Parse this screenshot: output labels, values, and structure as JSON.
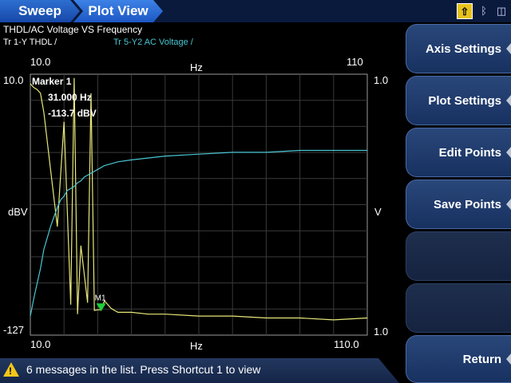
{
  "breadcrumb": {
    "sweep": "Sweep",
    "plot_view": "Plot View"
  },
  "status": {
    "up_icon": "up-arrow-icon",
    "bt_icon": "bluetooth-icon",
    "usb_icon": "usb-icon"
  },
  "plot": {
    "title": "THDL/AC Voltage VS Frequency",
    "trace1_label": "Tr 1-Y THDL /",
    "trace2_label": "Tr 5-Y2 AC Voltage /",
    "top_axis_min": "10.0",
    "top_axis_unit": "Hz",
    "top_axis_max": "110",
    "bottom_axis_min": "10.0",
    "bottom_axis_unit": "Hz",
    "bottom_axis_max": "110.0",
    "left_axis_top": "10.0",
    "left_axis_unit": "dBV",
    "left_axis_bottom": "-127",
    "right_axis_top": "1.0",
    "right_axis_unit": "V",
    "right_axis_bottom": "1.0",
    "marker_name": "M1"
  },
  "marker": {
    "title": "Marker 1",
    "frequency": "31.000 Hz",
    "value": "-113.7 dBV"
  },
  "softkeys": {
    "axis_settings": "Axis Settings",
    "plot_settings": "Plot Settings",
    "edit_points": "Edit Points",
    "save_points": "Save Points",
    "return": "Return"
  },
  "message": {
    "text": "6 messages in the list. Press Shortcut 1 to view",
    "icon": "warning-icon"
  },
  "colors": {
    "trace1": "#e8e87a",
    "trace2": "#49c6d3",
    "marker": "#1fcf3a",
    "grid": "#3a3a3a"
  },
  "chart_data": {
    "type": "line",
    "x_range": [
      10.0,
      110.0
    ],
    "y_left_range": [
      -127,
      10.0
    ],
    "y_left_unit": "dBV",
    "y_right_unit": "V",
    "x_unit": "Hz",
    "grid": true,
    "series": [
      {
        "name": "Tr 1-Y THDL",
        "axis": "left",
        "x": [
          10,
          11,
          12,
          13,
          14,
          16,
          18,
          20,
          22,
          23,
          24,
          25,
          26,
          27,
          28,
          29,
          30,
          31,
          32,
          34,
          36,
          40,
          45,
          50,
          60,
          70,
          80,
          90,
          100,
          110
        ],
        "y": [
          5,
          3,
          2,
          0,
          -10,
          -40,
          -70,
          -15,
          -111,
          8,
          -116,
          -80,
          -95,
          -110,
          0,
          -114,
          -113.7,
          -113.7,
          -109,
          -113,
          -115,
          -115,
          -116,
          -116,
          -117,
          -117,
          -118,
          -118,
          -119,
          -118
        ]
      },
      {
        "name": "Tr 5-Y2 AC Voltage",
        "axis": "right",
        "x": [
          10,
          11,
          12,
          13,
          14,
          15,
          16,
          17,
          18,
          19,
          20,
          21,
          22,
          23,
          24,
          25,
          26,
          28,
          30,
          32,
          34,
          36,
          40,
          45,
          50,
          60,
          70,
          80,
          90,
          100,
          110
        ],
        "y": [
          -117,
          -108,
          -100,
          -92,
          -82,
          -76,
          -70,
          -65,
          -60,
          -56,
          -54,
          -51,
          -50,
          -49,
          -47,
          -46,
          -44,
          -42,
          -40,
          -38,
          -37,
          -36,
          -35,
          -34,
          -33,
          -32,
          -31,
          -31,
          -30,
          -30,
          -30
        ]
      }
    ],
    "marker": {
      "label": "M1",
      "x": 31.0,
      "y": -113.7
    }
  }
}
